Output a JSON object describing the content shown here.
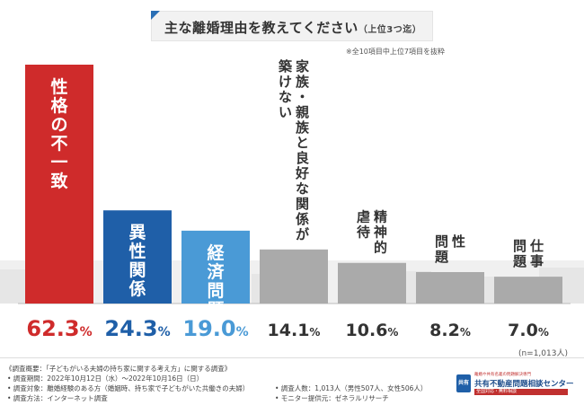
{
  "header": {
    "title": "主な離婚理由を教えてください",
    "title_suffix": "（上位3つ迄）",
    "note": "※全10項目中上位7項目を抜粋"
  },
  "chart_data": {
    "type": "bar",
    "title": "主な離婚理由を教えてください（上位3つ迄）",
    "categories": [
      "性格の不一致",
      "異性関係",
      "経済問題",
      "家族・親族と良好な関係が築けない",
      "精神的虐待",
      "性問題",
      "仕事問題"
    ],
    "category_lines": [
      [
        "性格の不一致"
      ],
      [
        "異性関係"
      ],
      [
        "経済問題"
      ],
      [
        "家族・親族と良好な関係が",
        "築けない"
      ],
      [
        "精神的",
        "虐待"
      ],
      [
        "性",
        "問題"
      ],
      [
        "仕事",
        "問題"
      ]
    ],
    "values": [
      62.3,
      24.3,
      19.0,
      14.1,
      10.6,
      8.2,
      7.0
    ],
    "value_labels": [
      "62.3",
      "24.3",
      "19.0",
      "14.1",
      "10.6",
      "8.2",
      "7.0"
    ],
    "unit": "%",
    "colors": [
      "#cf2b2b",
      "#1f5fa8",
      "#4a9ad6",
      "#aaaaaa",
      "#aaaaaa",
      "#aaaaaa",
      "#aaaaaa"
    ],
    "label_colors": [
      "#cf2b2b",
      "#1f5fa8",
      "#4a9ad6",
      "#333333",
      "#333333",
      "#333333",
      "#333333"
    ],
    "ylim": [
      0,
      62.3
    ],
    "grid": false,
    "n_label": "(n=1,013人)"
  },
  "footer": {
    "survey_title": "《調査概要：「子どもがいる夫婦の持ち家に関する考え方」に関する調査》",
    "period": "• 調査期間：2022年10月12日（水）～2022年10月16日（日）",
    "target": "• 調査対象：離婚経験のある方（婚姻時、持ち家で子どもがいた共働きの夫婦）",
    "method": "• 調査方法：インターネット調査",
    "count": "• 調査人数：1,013人（男性507人、女性506人）",
    "provider": "• モニター提供元：ゼネラルリサーチ"
  },
  "logo": {
    "mark": "共有",
    "tagline": "離婚や共有名義の問題解決専門",
    "name": "共有不動産問題相談センター",
    "sub": "全国対応・無料相談"
  }
}
